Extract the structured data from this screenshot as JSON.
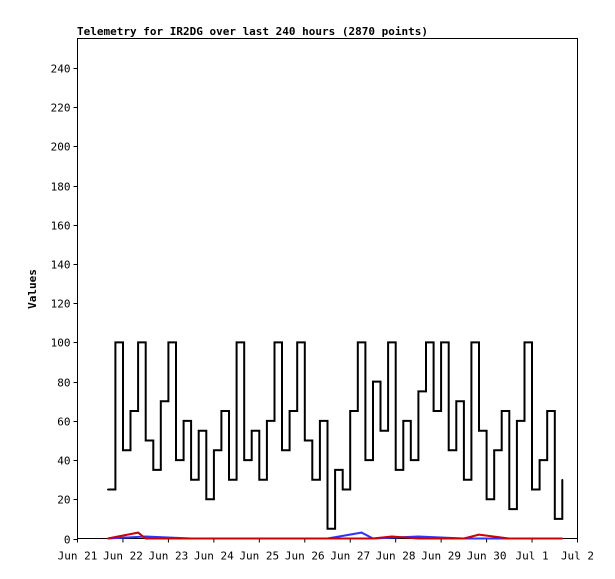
{
  "chart_data": {
    "type": "line",
    "title": "Telemetry for IR2DG over last 240 hours (2870 points)",
    "xlabel": "",
    "ylabel": "Values",
    "ylim": [
      0,
      255
    ],
    "yticks": [
      0,
      20,
      40,
      60,
      80,
      100,
      120,
      140,
      160,
      180,
      200,
      220,
      240
    ],
    "xlim": [
      "2024-06-21",
      "2024-07-02"
    ],
    "xtick_labels": [
      "Jun 21",
      "Jun 22",
      "Jun 23",
      "Jun 24",
      "Jun 25",
      "Jun 26",
      "Jun 27",
      "Jun 28",
      "Jun 29",
      "Jun 30",
      "Jul 1",
      "Jul 2"
    ],
    "grid": false,
    "series": [
      {
        "color": "#000000",
        "x": [
          "2024-06-21 16:00",
          "2024-06-21 20:00",
          "2024-06-22 00:00",
          "2024-06-22 04:00",
          "2024-06-22 08:00",
          "2024-06-22 12:00",
          "2024-06-22 16:00",
          "2024-06-22 20:00",
          "2024-06-23 00:00",
          "2024-06-23 04:00",
          "2024-06-23 08:00",
          "2024-06-23 12:00",
          "2024-06-23 16:00",
          "2024-06-23 20:00",
          "2024-06-24 00:00",
          "2024-06-24 04:00",
          "2024-06-24 08:00",
          "2024-06-24 12:00",
          "2024-06-24 16:00",
          "2024-06-24 20:00",
          "2024-06-25 00:00",
          "2024-06-25 04:00",
          "2024-06-25 08:00",
          "2024-06-25 12:00",
          "2024-06-25 16:00",
          "2024-06-25 20:00",
          "2024-06-26 00:00",
          "2024-06-26 04:00",
          "2024-06-26 08:00",
          "2024-06-26 12:00",
          "2024-06-26 16:00",
          "2024-06-26 20:00",
          "2024-06-27 00:00",
          "2024-06-27 04:00",
          "2024-06-27 08:00",
          "2024-06-27 12:00",
          "2024-06-27 16:00",
          "2024-06-27 20:00",
          "2024-06-28 00:00",
          "2024-06-28 04:00",
          "2024-06-28 08:00",
          "2024-06-28 12:00",
          "2024-06-28 16:00",
          "2024-06-28 20:00",
          "2024-06-29 00:00",
          "2024-06-29 04:00",
          "2024-06-29 08:00",
          "2024-06-29 12:00",
          "2024-06-29 16:00",
          "2024-06-29 20:00",
          "2024-06-30 00:00",
          "2024-06-30 04:00",
          "2024-06-30 08:00",
          "2024-06-30 12:00",
          "2024-06-30 16:00",
          "2024-06-30 20:00",
          "2024-07-01 00:00",
          "2024-07-01 04:00",
          "2024-07-01 08:00",
          "2024-07-01 12:00",
          "2024-07-01 16:00"
        ],
        "values": [
          25,
          100,
          45,
          65,
          100,
          50,
          35,
          70,
          100,
          40,
          60,
          30,
          55,
          20,
          45,
          65,
          30,
          100,
          40,
          55,
          30,
          60,
          100,
          45,
          65,
          100,
          50,
          30,
          60,
          5,
          35,
          25,
          65,
          100,
          40,
          80,
          55,
          100,
          35,
          60,
          40,
          75,
          100,
          65,
          100,
          45,
          70,
          30,
          100,
          55,
          20,
          45,
          65,
          15,
          60,
          100,
          25,
          40,
          65,
          10,
          30
        ]
      },
      {
        "color": "#3333ff",
        "x": [
          "2024-06-21 16:00",
          "2024-06-22 12:00",
          "2024-06-23 12:00",
          "2024-06-24 12:00",
          "2024-06-25 12:00",
          "2024-06-26 12:00",
          "2024-06-27 06:00",
          "2024-06-27 12:00",
          "2024-06-28 12:00",
          "2024-06-29 12:00",
          "2024-06-30 12:00",
          "2024-07-01 16:00"
        ],
        "values": [
          0,
          1,
          0,
          0,
          0,
          0,
          3,
          0,
          1,
          0,
          0,
          0
        ]
      },
      {
        "color": "#cc0000",
        "x": [
          "2024-06-21 16:00",
          "2024-06-22 08:00",
          "2024-06-22 12:00",
          "2024-06-23 12:00",
          "2024-06-24 12:00",
          "2024-06-25 12:00",
          "2024-06-26 12:00",
          "2024-06-27 12:00",
          "2024-06-27 22:00",
          "2024-06-28 12:00",
          "2024-06-29 12:00",
          "2024-06-29 20:00",
          "2024-06-30 12:00",
          "2024-07-01 16:00"
        ],
        "values": [
          0,
          3,
          0,
          0,
          0,
          0,
          0,
          0,
          1,
          0,
          0,
          2,
          0,
          0
        ]
      }
    ]
  }
}
